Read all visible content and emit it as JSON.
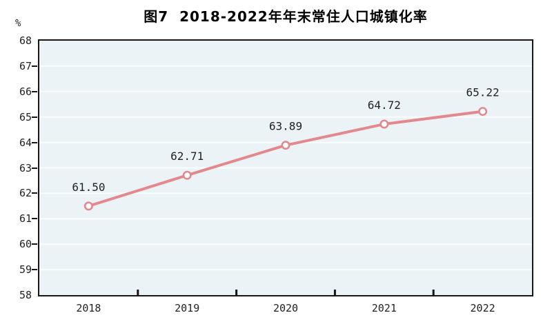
{
  "chart_data": {
    "type": "line",
    "title": "图7  2018-2022年年末常住人口城镇化率",
    "unit_label": "%",
    "categories": [
      "2018",
      "2019",
      "2020",
      "2021",
      "2022"
    ],
    "values": [
      61.5,
      62.71,
      63.89,
      64.72,
      65.22
    ],
    "data_labels": [
      "61.50",
      "62.71",
      "63.89",
      "64.72",
      "65.22"
    ],
    "ylim": [
      58,
      68
    ],
    "ytick_step": 1,
    "yticks": [
      "58",
      "59",
      "60",
      "61",
      "62",
      "63",
      "64",
      "65",
      "66",
      "67",
      "68"
    ],
    "grid": true,
    "legend_position": "none",
    "colors": {
      "line": "#e3898d",
      "marker_fill": "#ffffff",
      "marker_stroke": "#e3898d",
      "plot_bg": "#ecf3f7",
      "grid_line": "#fafdfe",
      "axis": "#161616",
      "tick_text": "#222222",
      "data_label_text": "#222222",
      "title_text": "#000000"
    }
  }
}
